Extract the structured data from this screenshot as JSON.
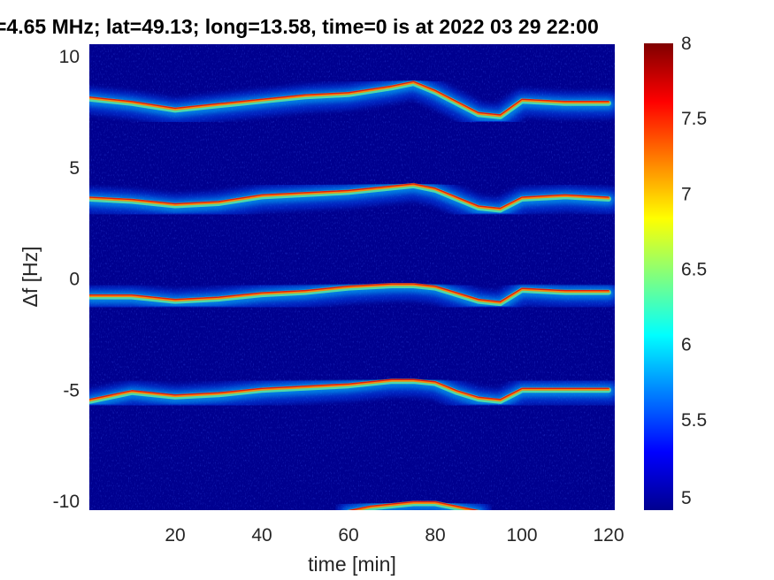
{
  "chart_data": {
    "type": "heatmap",
    "title": "=4.65 MHz;  lat=49.13; long=13.58, time=0 is at 2022 03 29 22:00",
    "xlabel": "time [min]",
    "ylabel": "Δf [Hz]",
    "xlim": [
      0,
      120
    ],
    "ylim": [
      -10.5,
      10.5
    ],
    "x_ticks": [
      "20",
      "40",
      "60",
      "80",
      "100",
      "120"
    ],
    "x_tick_values": [
      20,
      40,
      60,
      80,
      100,
      120
    ],
    "y_ticks": [
      "10",
      "5",
      "0",
      "-5",
      "-10"
    ],
    "y_tick_values": [
      10,
      5,
      0,
      -5,
      -10
    ],
    "colorbar": {
      "range": [
        4.9,
        8
      ],
      "ticks": [
        "8",
        "7.5",
        "7",
        "6.5",
        "6",
        "5.5",
        "5"
      ],
      "tick_values": [
        8,
        7.5,
        7,
        6.5,
        6,
        5.5,
        5
      ],
      "colormap": "jet"
    },
    "background_color": "#00008f",
    "grid": false,
    "series": [
      {
        "x": [
          0,
          10,
          20,
          30,
          40,
          50,
          60,
          70,
          75,
          80,
          85,
          90,
          95,
          100,
          110,
          120
        ],
        "y": [
          8.1,
          7.9,
          7.6,
          7.8,
          8.0,
          8.2,
          8.3,
          8.6,
          8.8,
          8.4,
          7.9,
          7.4,
          7.3,
          8.0,
          7.9,
          7.9
        ]
      },
      {
        "x": [
          0,
          10,
          20,
          30,
          40,
          50,
          60,
          70,
          75,
          80,
          85,
          90,
          95,
          100,
          110,
          120
        ],
        "y": [
          3.6,
          3.5,
          3.3,
          3.4,
          3.7,
          3.8,
          3.9,
          4.1,
          4.2,
          4.0,
          3.6,
          3.2,
          3.1,
          3.6,
          3.7,
          3.6
        ]
      },
      {
        "x": [
          0,
          10,
          20,
          30,
          40,
          50,
          60,
          70,
          75,
          80,
          85,
          90,
          95,
          100,
          110,
          120
        ],
        "y": [
          -0.8,
          -0.8,
          -1.0,
          -0.9,
          -0.7,
          -0.6,
          -0.4,
          -0.3,
          -0.3,
          -0.4,
          -0.7,
          -1.0,
          -1.1,
          -0.5,
          -0.6,
          -0.6
        ]
      },
      {
        "x": [
          0,
          10,
          20,
          30,
          40,
          50,
          60,
          70,
          75,
          80,
          85,
          90,
          95,
          100,
          110,
          120
        ],
        "y": [
          -5.5,
          -5.1,
          -5.3,
          -5.2,
          -5.0,
          -4.9,
          -4.8,
          -4.6,
          -4.6,
          -4.7,
          -5.1,
          -5.4,
          -5.5,
          -5.0,
          -5.0,
          -5.0
        ]
      },
      {
        "x": [
          60,
          65,
          70,
          75,
          80,
          85,
          90
        ],
        "y": [
          -10.5,
          -10.3,
          -10.2,
          -10.1,
          -10.1,
          -10.3,
          -10.5
        ]
      }
    ]
  }
}
